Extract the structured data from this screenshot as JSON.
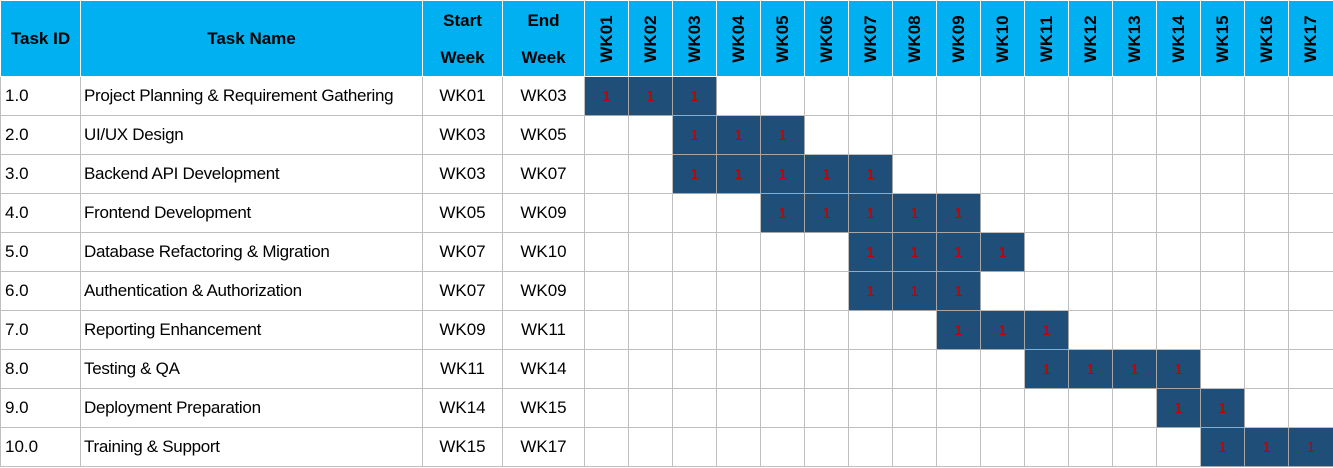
{
  "header": {
    "task_id": "Task ID",
    "task_name": "Task Name",
    "start_week": [
      "Start",
      "Week"
    ],
    "end_week": [
      "End",
      "Week"
    ],
    "weeks": [
      "WK01",
      "WK02",
      "WK03",
      "WK04",
      "WK05",
      "WK06",
      "WK07",
      "WK08",
      "WK09",
      "WK10",
      "WK11",
      "WK12",
      "WK13",
      "WK14",
      "WK15",
      "WK16",
      "WK17"
    ]
  },
  "active_marker": "1",
  "colors": {
    "header_bg": "#00b0f0",
    "active_bg": "#1f4e79",
    "marker_text": "#c00000",
    "grid": "#bfbfbf"
  },
  "tasks": [
    {
      "id": "1.0",
      "name": "Project Planning & Requirement Gathering",
      "start": "WK01",
      "end": "WK03",
      "start_index": 1,
      "end_index": 3
    },
    {
      "id": "2.0",
      "name": "UI/UX Design",
      "start": "WK03",
      "end": "WK05",
      "start_index": 3,
      "end_index": 5
    },
    {
      "id": "3.0",
      "name": "Backend API Development",
      "start": "WK03",
      "end": "WK07",
      "start_index": 3,
      "end_index": 7
    },
    {
      "id": "4.0",
      "name": "Frontend Development",
      "start": "WK05",
      "end": "WK09",
      "start_index": 5,
      "end_index": 9
    },
    {
      "id": "5.0",
      "name": "Database Refactoring & Migration",
      "start": "WK07",
      "end": "WK10",
      "start_index": 7,
      "end_index": 10
    },
    {
      "id": "6.0",
      "name": "Authentication & Authorization",
      "start": "WK07",
      "end": "WK09",
      "start_index": 7,
      "end_index": 9
    },
    {
      "id": "7.0",
      "name": "Reporting Enhancement",
      "start": "WK09",
      "end": "WK11",
      "start_index": 9,
      "end_index": 11
    },
    {
      "id": "8.0",
      "name": "Testing & QA",
      "start": "WK11",
      "end": "WK14",
      "start_index": 11,
      "end_index": 14
    },
    {
      "id": "9.0",
      "name": "Deployment Preparation",
      "start": "WK14",
      "end": "WK15",
      "start_index": 14,
      "end_index": 15
    },
    {
      "id": "10.0",
      "name": "Training & Support",
      "start": "WK15",
      "end": "WK17",
      "start_index": 15,
      "end_index": 17
    }
  ]
}
